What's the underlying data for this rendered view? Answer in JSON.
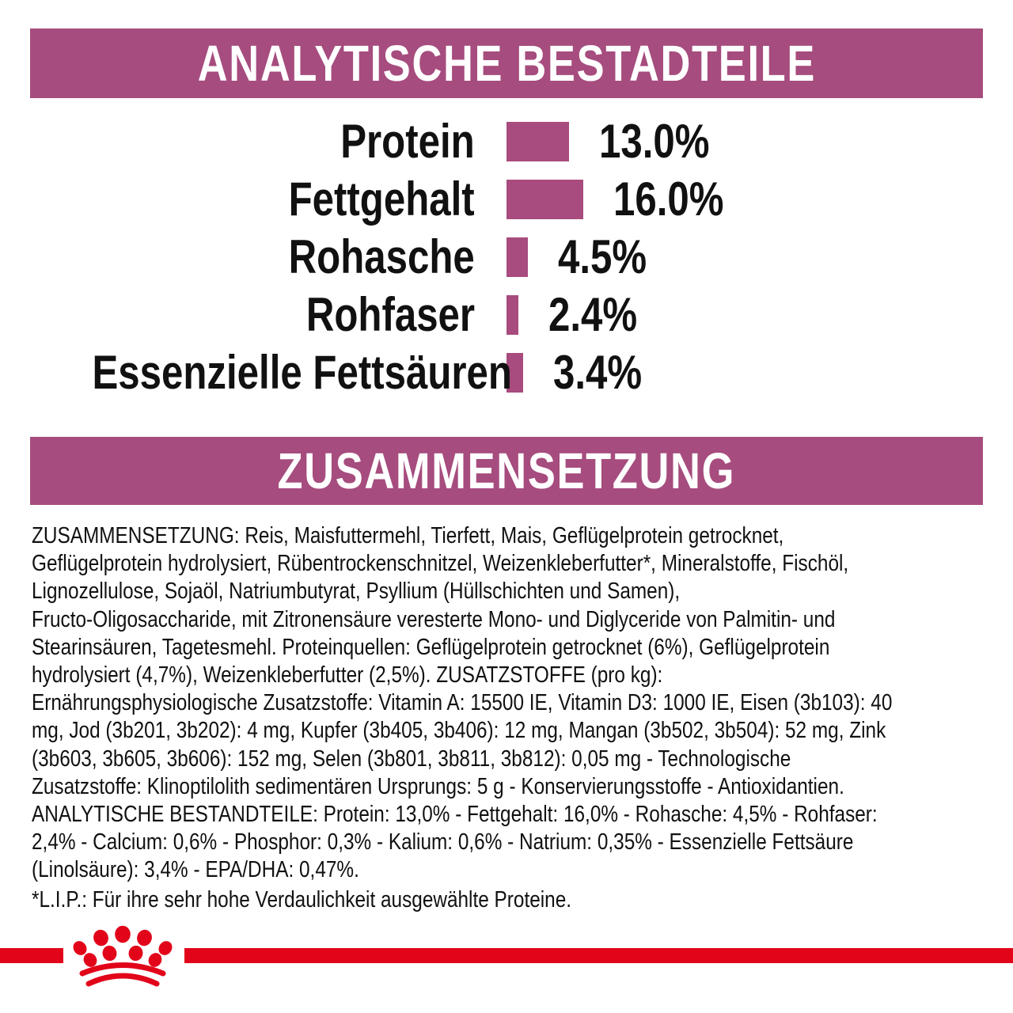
{
  "colors": {
    "banner_magenta": "#a64c7e",
    "bar_magenta": "#a84b7e",
    "brand_red": "#e2051a",
    "text": "#111111"
  },
  "analytical": {
    "title": "ANALYTISCHE BESTADTEILE"
  },
  "chart_data": {
    "type": "bar",
    "orientation": "horizontal",
    "title": "ANALYTISCHE BESTADTEILE",
    "categories": [
      "Protein",
      "Fettgehalt",
      "Rohasche",
      "Rohfaser",
      "Essenzielle Fettsäuren"
    ],
    "values": [
      13.0,
      16.0,
      4.5,
      2.4,
      3.4
    ],
    "value_labels": [
      "13.0%",
      "16.0%",
      "4.5%",
      "2.4%",
      "3.4%"
    ],
    "unit": "%",
    "bar_color": "#a84b7e",
    "grid": false,
    "legend": false
  },
  "composition": {
    "title": "ZUSAMMENSETZUNG",
    "lines": [
      "ZUSAMMENSETZUNG: Reis, Maisfuttermehl, Tierfett, Mais, Geflügelprotein getrocknet,",
      "Geflügelprotein hydrolysiert, Rübentrockenschnitzel, Weizenkleberfutter*, Mineralstoffe, Fischöl,",
      "Lignozellulose, Sojaöl, Natriumbutyrat, Psyllium (Hüllschichten und Samen),",
      "Fructo-Oligosaccharide, mit Zitronensäure veresterte Mono- und Diglyceride von Palmitin- und",
      "Stearinsäuren, Tagetesmehl. Proteinquellen: Geflügelprotein getrocknet (6%), Geflügelprotein",
      "hydrolysiert (4,7%), Weizenkleberfutter (2,5%). ZUSATZSTOFFE (pro kg):",
      "Ernährungsphysiologische Zusatzstoffe: Vitamin A: 15500 IE, Vitamin D3: 1000 IE, Eisen (3b103): 40",
      "mg, Jod (3b201, 3b202): 4 mg, Kupfer (3b405, 3b406): 12 mg, Mangan (3b502, 3b504): 52 mg, Zink",
      "(3b603, 3b605, 3b606): 152 mg, Selen (3b801, 3b811, 3b812): 0,05 mg - Technologische",
      "Zusatzstoffe: Klinoptilolith sedimentären Ursprungs: 5 g - Konservierungsstoffe - Antioxidantien.",
      "ANALYTISCHE BESTANDTEILE: Protein: 13,0% - Fettgehalt: 16,0% - Rohasche: 4,5% - Rohfaser:",
      "2,4% - Calcium: 0,6% - Phosphor: 0,3% - Kalium: 0,6% - Natrium: 0,35% - Essenzielle Fettsäure",
      "(Linolsäure): 3,4% - EPA/DHA: 0,47%."
    ],
    "footnote": "*L.I.P.: Für ihre sehr hohe Verdaulichkeit ausgewählte Proteine."
  },
  "footer": {
    "logo": "royal-canin-crown"
  }
}
